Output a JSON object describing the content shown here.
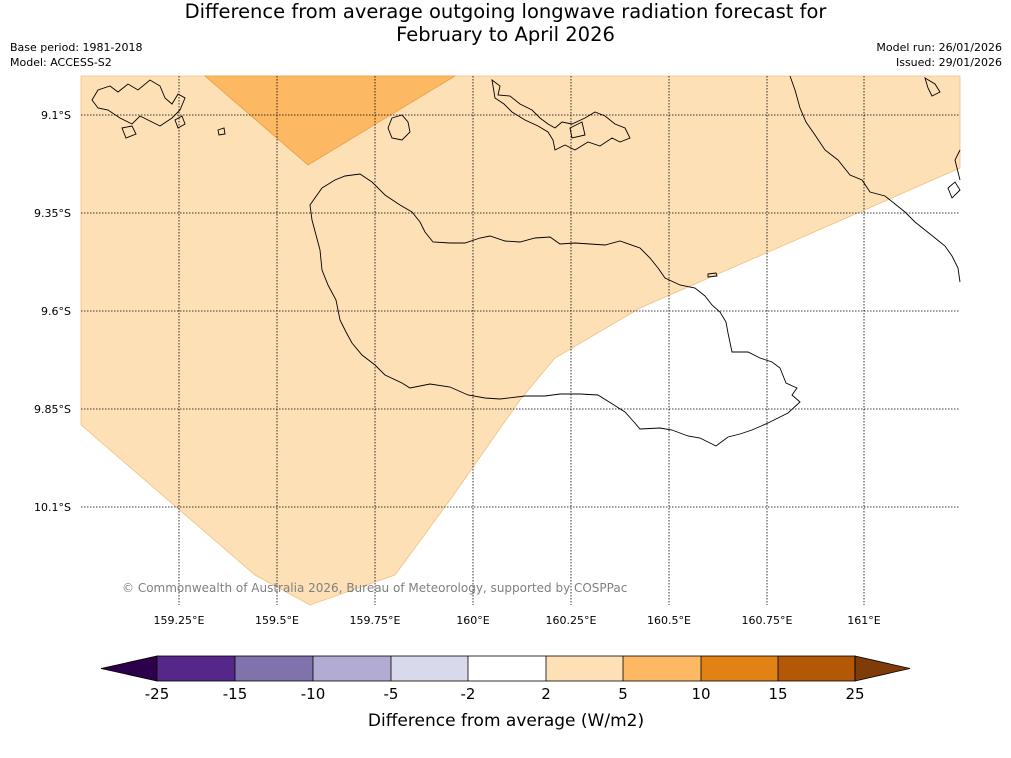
{
  "title": {
    "line1": "Difference from average outgoing longwave radiation forecast for",
    "line2": "February to April 2026"
  },
  "meta": {
    "base_period": "Base period: 1981-2018",
    "model": "Model: ACCESS-S2",
    "model_run": "Model run: 26/01/2026",
    "issued": "Issued: 29/01/2026"
  },
  "map": {
    "lat_labels": [
      "9.1°S",
      "9.35°S",
      "9.6°S",
      "9.85°S",
      "10.1°S"
    ],
    "lon_labels": [
      "159.25°E",
      "159.5°E",
      "159.75°E",
      "160°E",
      "160.25°E",
      "160.5°E",
      "160.75°E",
      "161°E"
    ],
    "copyright": "© Commonwealth of Australia 2026, Bureau of Meteorology, supported by COSPPac",
    "colors": {
      "band_2_5": "#fde0b6",
      "band_5_10": "#fdb863",
      "coast": "#000000",
      "grid": "#000000"
    }
  },
  "colorbar": {
    "title": "Difference from average (W/m2)",
    "ticks": [
      "-25",
      "-15",
      "-10",
      "-5",
      "-2",
      "2",
      "5",
      "10",
      "15",
      "25"
    ],
    "colors": [
      "#2d004b",
      "#542788",
      "#8073ac",
      "#b2abd2",
      "#d8daeb",
      "#ffffff",
      "#fee0b6",
      "#fdb863",
      "#e08214",
      "#b35806",
      "#7f3b08"
    ]
  }
}
